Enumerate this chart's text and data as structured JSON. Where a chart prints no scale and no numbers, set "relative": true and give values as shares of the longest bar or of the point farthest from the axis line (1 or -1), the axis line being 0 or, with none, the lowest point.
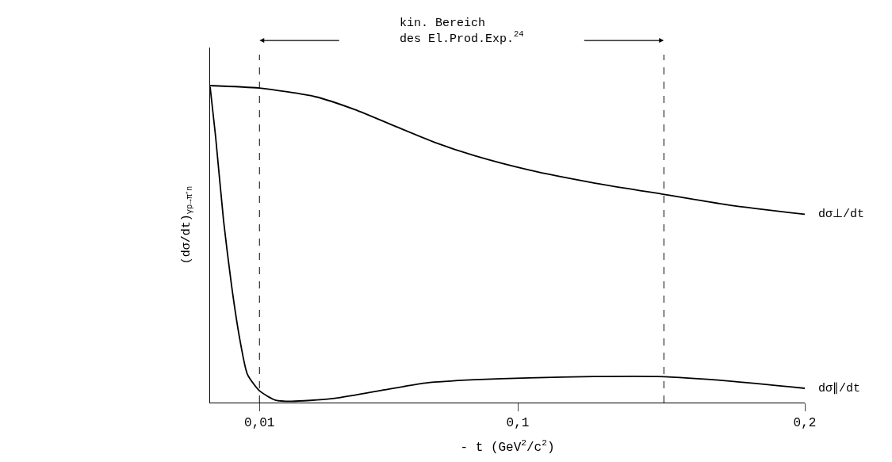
{
  "chart_data": {
    "type": "line",
    "relative": true,
    "xlabel": "- t (GeV$^{2}$/c$^{2}$)",
    "ylabel": "(dσ/dt)$_{γp→π⁺n}$",
    "xlim": [
      -0.0072,
      0.2
    ],
    "xticks": [
      {
        "value": 0.01,
        "label": "0,01"
      },
      {
        "value": 0.1,
        "label": "0,1"
      },
      {
        "value": 0.2,
        "label": "0,2"
      }
    ],
    "series": [
      {
        "name": "dσ⊥/dt",
        "color": "#000000",
        "x": [
          -0.0072,
          0.01,
          0.0294,
          0.0433,
          0.0572,
          0.071,
          0.0849,
          0.1038,
          0.1265,
          0.1515,
          0.1737,
          0.2
        ],
        "values": [
          1.0,
          0.992,
          0.965,
          0.924,
          0.872,
          0.821,
          0.779,
          0.734,
          0.693,
          0.656,
          0.623,
          0.594
        ]
      },
      {
        "name": "dσ∥/dt",
        "color": "#000000",
        "x": [
          -0.0072,
          -0.0053,
          -0.0025,
          0.0003,
          0.0031,
          0.0058,
          0.01,
          0.0155,
          0.0211,
          0.035,
          0.0516,
          0.0683,
          0.0849,
          0.1038,
          0.1265,
          0.1487,
          0.1737,
          0.2
        ],
        "values": [
          0.996,
          0.84,
          0.573,
          0.367,
          0.202,
          0.089,
          0.037,
          0.008,
          0.004,
          0.012,
          0.037,
          0.062,
          0.072,
          0.078,
          0.082,
          0.082,
          0.068,
          0.045
        ]
      }
    ],
    "ref_lines": [
      {
        "axis": "x",
        "value": 0.01,
        "line_style": "dashed"
      },
      {
        "axis": "x",
        "value": 0.1509,
        "line_style": "dashed"
      }
    ],
    "annotations": [
      "kin. Bereich\ndes El.Prod.Exp.$^{24}$"
    ],
    "legend": false,
    "line_style": "solid",
    "marker": "none"
  }
}
